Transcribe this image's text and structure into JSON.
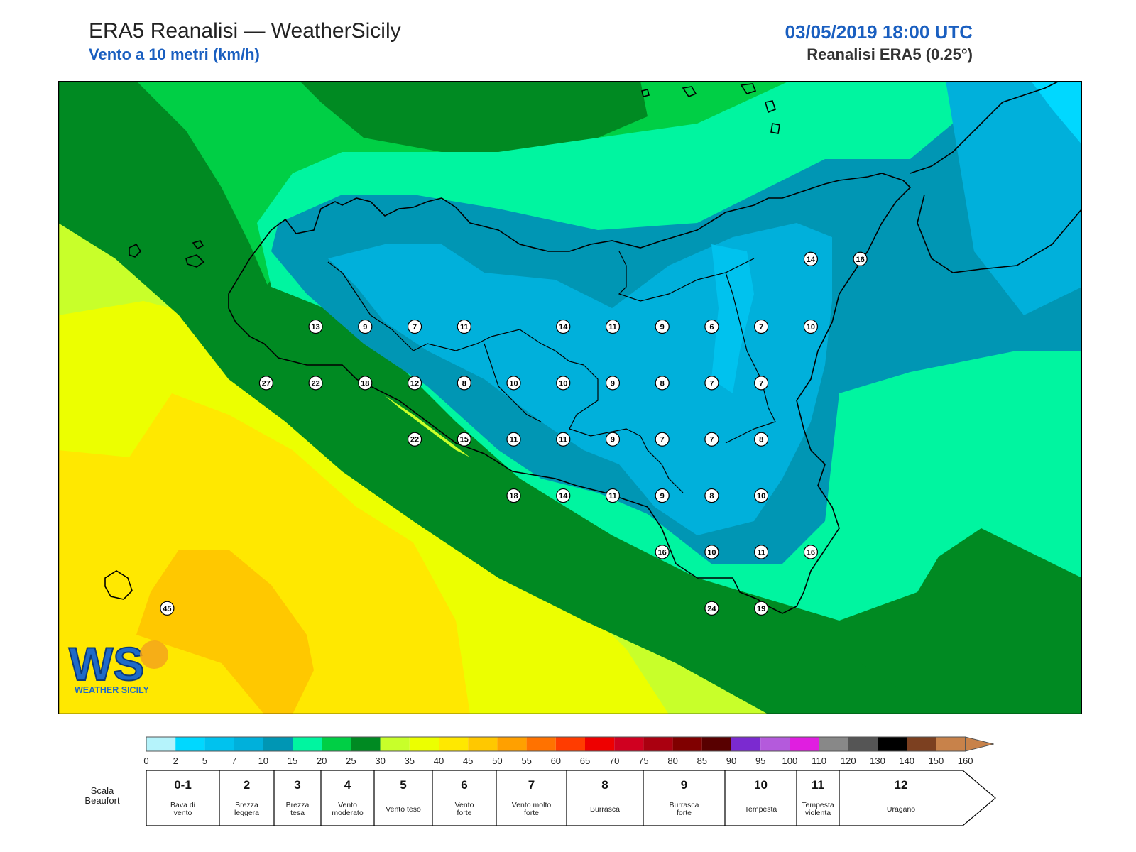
{
  "header": {
    "title": "ERA5 Reanalisi — WeatherSicily",
    "subtitle": "Vento a 10 metri (km/h)",
    "datetime": "03/05/2019 18:00 UTC",
    "model": "Reanalisi ERA5 (0.25°)"
  },
  "logo": {
    "initials": "WS",
    "name": "WEATHER SICILY"
  },
  "stations": [
    {
      "v": "13",
      "lon": 12.5,
      "lat": 38.2
    },
    {
      "v": "9",
      "lon": 12.75,
      "lat": 38.2
    },
    {
      "v": "7",
      "lon": 13.0,
      "lat": 38.2
    },
    {
      "v": "11",
      "lon": 13.25,
      "lat": 38.2
    },
    {
      "v": "14",
      "lon": 13.75,
      "lat": 38.2
    },
    {
      "v": "11",
      "lon": 14.0,
      "lat": 38.2
    },
    {
      "v": "9",
      "lon": 14.25,
      "lat": 38.2
    },
    {
      "v": "6",
      "lon": 14.5,
      "lat": 38.2
    },
    {
      "v": "7",
      "lon": 14.75,
      "lat": 38.2
    },
    {
      "v": "10",
      "lon": 15.0,
      "lat": 38.2
    },
    {
      "v": "14",
      "lon": 15.0,
      "lat": 38.5
    },
    {
      "v": "16",
      "lon": 15.25,
      "lat": 38.5
    },
    {
      "v": "27",
      "lon": 12.25,
      "lat": 37.95
    },
    {
      "v": "22",
      "lon": 12.5,
      "lat": 37.95
    },
    {
      "v": "18",
      "lon": 12.75,
      "lat": 37.95
    },
    {
      "v": "12",
      "lon": 13.0,
      "lat": 37.95
    },
    {
      "v": "8",
      "lon": 13.25,
      "lat": 37.95
    },
    {
      "v": "10",
      "lon": 13.5,
      "lat": 37.95
    },
    {
      "v": "10",
      "lon": 13.75,
      "lat": 37.95
    },
    {
      "v": "9",
      "lon": 14.0,
      "lat": 37.95
    },
    {
      "v": "8",
      "lon": 14.25,
      "lat": 37.95
    },
    {
      "v": "7",
      "lon": 14.5,
      "lat": 37.95
    },
    {
      "v": "7",
      "lon": 14.75,
      "lat": 37.95
    },
    {
      "v": "22",
      "lon": 13.0,
      "lat": 37.7
    },
    {
      "v": "15",
      "lon": 13.25,
      "lat": 37.7
    },
    {
      "v": "11",
      "lon": 13.5,
      "lat": 37.7
    },
    {
      "v": "11",
      "lon": 13.75,
      "lat": 37.7
    },
    {
      "v": "9",
      "lon": 14.0,
      "lat": 37.7
    },
    {
      "v": "7",
      "lon": 14.25,
      "lat": 37.7
    },
    {
      "v": "7",
      "lon": 14.5,
      "lat": 37.7
    },
    {
      "v": "8",
      "lon": 14.75,
      "lat": 37.7
    },
    {
      "v": "18",
      "lon": 13.5,
      "lat": 37.45
    },
    {
      "v": "14",
      "lon": 13.75,
      "lat": 37.45
    },
    {
      "v": "11",
      "lon": 14.0,
      "lat": 37.45
    },
    {
      "v": "9",
      "lon": 14.25,
      "lat": 37.45
    },
    {
      "v": "8",
      "lon": 14.5,
      "lat": 37.45
    },
    {
      "v": "10",
      "lon": 14.75,
      "lat": 37.45
    },
    {
      "v": "16",
      "lon": 14.25,
      "lat": 37.2
    },
    {
      "v": "10",
      "lon": 14.5,
      "lat": 37.2
    },
    {
      "v": "11",
      "lon": 14.75,
      "lat": 37.2
    },
    {
      "v": "16",
      "lon": 15.0,
      "lat": 37.2
    },
    {
      "v": "24",
      "lon": 14.5,
      "lat": 36.95
    },
    {
      "v": "19",
      "lon": 14.75,
      "lat": 36.95
    },
    {
      "v": "45",
      "lon": 11.75,
      "lat": 36.95
    }
  ],
  "colorbar": {
    "ticks": [
      "0",
      "2",
      "5",
      "7",
      "10",
      "15",
      "20",
      "25",
      "30",
      "35",
      "40",
      "45",
      "50",
      "55",
      "60",
      "65",
      "70",
      "75",
      "80",
      "85",
      "90",
      "95",
      "100",
      "110",
      "120",
      "130",
      "140",
      "150",
      "160"
    ],
    "colors": [
      "#b5f3fb",
      "#00d8ff",
      "#00c2ee",
      "#00b0db",
      "#0096b4",
      "#00f5a0",
      "#00cf45",
      "#008a22",
      "#c8ff2a",
      "#ecff00",
      "#ffe800",
      "#ffc800",
      "#ffa000",
      "#ff7200",
      "#ff3c00",
      "#ee0000",
      "#d00020",
      "#aa0010",
      "#800000",
      "#580000",
      "#7b2ad0",
      "#b45adc",
      "#e01ee0",
      "#888888",
      "#555555",
      "#000000",
      "#7c4020",
      "#c8824a"
    ]
  },
  "beaufort": {
    "label": "Scala Beaufort",
    "classes": [
      {
        "n": "0-1",
        "d": "Bava di vento"
      },
      {
        "n": "2",
        "d": "Brezza leggera"
      },
      {
        "n": "3",
        "d": "Brezza tesa"
      },
      {
        "n": "4",
        "d": "Vento moderato"
      },
      {
        "n": "5",
        "d": "Vento teso"
      },
      {
        "n": "6",
        "d": "Vento forte"
      },
      {
        "n": "7",
        "d": "Vento molto forte"
      },
      {
        "n": "8",
        "d": "Burrasca"
      },
      {
        "n": "9",
        "d": "Burrasca forte"
      },
      {
        "n": "10",
        "d": "Tempesta"
      },
      {
        "n": "11",
        "d": "Tempesta violenta"
      },
      {
        "n": "12",
        "d": "Uragano"
      }
    ]
  }
}
